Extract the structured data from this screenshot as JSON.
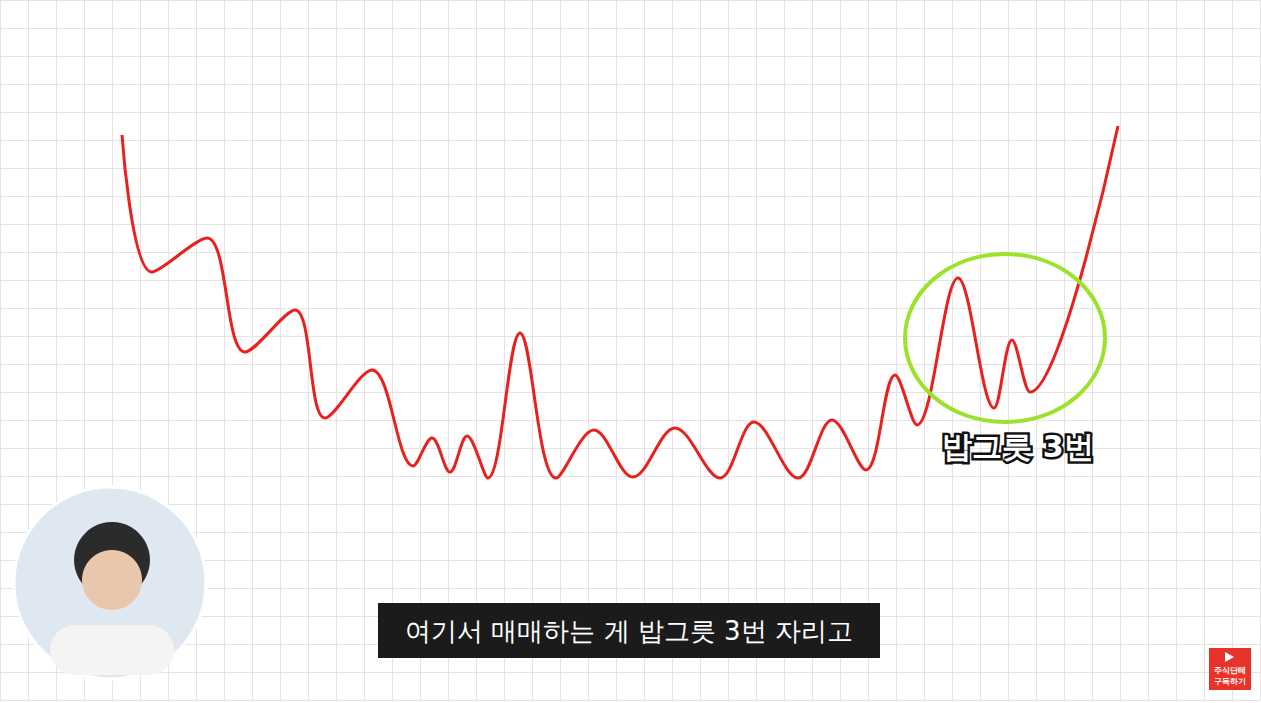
{
  "chart_data": {
    "type": "line",
    "subtitle": "여기서 매매하는 게 밥그릇 3번 자리고",
    "annotations": [
      "밥그릇 3번"
    ],
    "badge": [
      "주식단테",
      "구독하기"
    ],
    "x": [
      122,
      152,
      207,
      245,
      295,
      325,
      372,
      413,
      432,
      450,
      467,
      488,
      520,
      556,
      594,
      633,
      675,
      720,
      754,
      798,
      832,
      866,
      895,
      917,
      958,
      994,
      1012,
      1030,
      1118
    ],
    "values": [
      565,
      428,
      462,
      348,
      390,
      282,
      330,
      234,
      262,
      228,
      264,
      222,
      367,
      222,
      270,
      223,
      272,
      222,
      278,
      222,
      280,
      230,
      325,
      275,
      422,
      292,
      360,
      308,
      574
    ],
    "color": "#e8211c",
    "xlim": [
      0,
      1260
    ],
    "ylim": [
      0,
      700
    ],
    "xticks": [
      0,
      28,
      56,
      84,
      112,
      140,
      168,
      196,
      224,
      252,
      280,
      308,
      336,
      364,
      392,
      420,
      448,
      476,
      504,
      532,
      560,
      588,
      616,
      644,
      672,
      700,
      728,
      756,
      784,
      812,
      840,
      868,
      896,
      924,
      952,
      980,
      1008,
      1036,
      1064,
      1092,
      1120,
      1148,
      1176,
      1204,
      1232,
      1260
    ],
    "yticks": [
      0,
      28,
      56,
      84,
      112,
      140,
      168,
      196,
      224,
      252,
      280,
      308,
      336,
      364,
      392,
      420,
      448,
      476,
      504,
      532,
      560,
      588,
      616,
      644,
      672,
      700
    ],
    "grid": true,
    "tick_labels": false
  }
}
